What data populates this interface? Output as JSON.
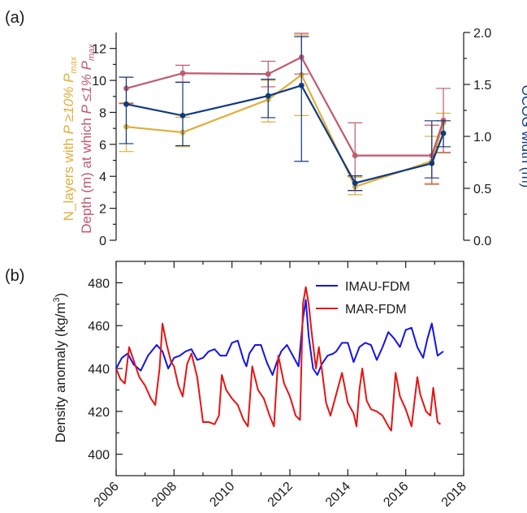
{
  "colors": {
    "gold": "#E0AE3A",
    "rose": "#BF5A6E",
    "navy": "#0F3A80",
    "blue": "#1414E6",
    "red": "#E61414"
  },
  "panel_a": {
    "label": "(a)",
    "ylabel_gold_prefix": "N_layers with ",
    "ylabel_gold_suffix": "P ≥10% P",
    "ylabel_gold_sub": "max",
    "ylabel_rose_prefix": "Depth (m) at which ",
    "ylabel_rose_suffix": "P ≤1% P",
    "ylabel_rose_sub": "max",
    "ylabel_right": "OCOG width (m)",
    "left_ticks": [
      "0",
      "2",
      "4",
      "6",
      "8",
      "10",
      "12"
    ],
    "right_ticks": [
      "0.0",
      "0.5",
      "1.0",
      "1.5",
      "2.0"
    ]
  },
  "panel_b": {
    "label": "(b)",
    "ylabel_main": "Density anomaly (kg/m",
    "ylabel_sup": "3",
    "ylabel_close": ")",
    "y_ticks": [
      "400",
      "420",
      "440",
      "460",
      "480"
    ],
    "legend": [
      "IMAU-FDM",
      "MAR-FDM"
    ]
  },
  "x_ticks": [
    "2006",
    "2008",
    "2010",
    "2012",
    "2014",
    "2016",
    "2018"
  ],
  "chart_data": [
    {
      "type": "line",
      "xlim": [
        2006,
        2018
      ],
      "ylim_left": [
        0,
        13
      ],
      "ylim_right": [
        0,
        2.0
      ],
      "series": [
        {
          "axis": "left",
          "color": "gold",
          "x": [
            2006.35,
            2008.3,
            2011.25,
            2012.4,
            2014.25,
            2016.9,
            2017.3
          ],
          "y": [
            7.1,
            6.75,
            8.8,
            10.35,
            3.35,
            4.95,
            7.35
          ],
          "err_low": [
            5.55,
            5.85,
            7.4,
            7.8,
            2.85,
            3.55,
            5.45
          ],
          "err_high": [
            8.6,
            7.7,
            10.0,
            12.85,
            3.95,
            6.5,
            7.95
          ]
        },
        {
          "axis": "left",
          "color": "rose",
          "x": [
            2006.35,
            2008.3,
            2011.25,
            2012.4,
            2014.25,
            2016.9,
            2017.3
          ],
          "y": [
            9.5,
            10.45,
            10.4,
            11.45,
            5.3,
            5.3,
            7.5
          ],
          "err_low": [
            8.55,
            9.9,
            9.6,
            10.4,
            3.1,
            3.5,
            5.5
          ],
          "err_high": [
            10.2,
            10.95,
            11.2,
            12.95,
            7.35,
            7.2,
            9.5
          ]
        },
        {
          "axis": "right",
          "color": "navy",
          "x": [
            2006.35,
            2008.3,
            2011.25,
            2012.4,
            2014.25,
            2016.9,
            2017.3
          ],
          "y": [
            1.31,
            1.2,
            1.39,
            1.49,
            0.55,
            0.74,
            1.03
          ],
          "err_low": [
            0.93,
            0.91,
            1.18,
            0.76,
            0.48,
            0.6,
            0.9
          ],
          "err_high": [
            1.57,
            1.52,
            1.55,
            1.96,
            0.62,
            1.15,
            1.15
          ]
        }
      ]
    },
    {
      "type": "line",
      "xlim": [
        2006,
        2018
      ],
      "ylim": [
        390,
        490
      ],
      "series": [
        {
          "name": "IMAU-FDM",
          "color": "blue",
          "x": [
            2006.0,
            2006.2,
            2006.4,
            2006.6,
            2006.85,
            2007.1,
            2007.4,
            2007.6,
            2007.8,
            2008.0,
            2008.2,
            2008.4,
            2008.6,
            2008.8,
            2009.0,
            2009.2,
            2009.4,
            2009.6,
            2009.8,
            2010.0,
            2010.2,
            2010.4,
            2010.5,
            2010.6,
            2010.8,
            2011.0,
            2011.2,
            2011.4,
            2011.55,
            2011.7,
            2011.9,
            2012.1,
            2012.3,
            2012.45,
            2012.55,
            2012.65,
            2012.8,
            2012.95,
            2013.1,
            2013.3,
            2013.5,
            2013.6,
            2013.8,
            2014.0,
            2014.2,
            2014.4,
            2014.6,
            2014.8,
            2015.0,
            2015.2,
            2015.4,
            2015.6,
            2015.8,
            2016.0,
            2016.2,
            2016.4,
            2016.6,
            2016.75,
            2016.9,
            2017.1,
            2017.3
          ],
          "y": [
            440,
            445,
            447,
            442,
            439,
            446,
            451,
            448,
            440,
            445,
            446,
            448,
            449,
            444,
            445,
            448,
            449,
            446,
            446,
            452,
            453,
            444,
            441,
            447,
            451,
            451,
            443,
            437,
            443,
            448,
            451,
            446,
            441,
            463,
            472,
            455,
            440,
            437,
            442,
            446,
            447,
            448,
            452,
            452,
            443,
            450,
            452,
            451,
            444,
            450,
            457,
            454,
            450,
            458,
            459,
            450,
            445,
            454,
            461,
            446,
            448
          ]
        },
        {
          "name": "MAR-FDM",
          "color": "red",
          "x": [
            2006.0,
            2006.15,
            2006.3,
            2006.45,
            2006.6,
            2006.8,
            2007.0,
            2007.2,
            2007.35,
            2007.5,
            2007.6,
            2007.75,
            2007.9,
            2008.0,
            2008.15,
            2008.3,
            2008.45,
            2008.6,
            2008.8,
            2009.0,
            2009.2,
            2009.4,
            2009.55,
            2009.65,
            2009.8,
            2010.0,
            2010.2,
            2010.4,
            2010.55,
            2010.7,
            2010.9,
            2011.1,
            2011.3,
            2011.45,
            2011.6,
            2011.8,
            2012.0,
            2012.2,
            2012.35,
            2012.45,
            2012.55,
            2012.65,
            2012.75,
            2012.9,
            2013.0,
            2013.1,
            2013.25,
            2013.4,
            2013.6,
            2013.8,
            2014.0,
            2014.2,
            2014.3,
            2014.4,
            2014.5,
            2014.65,
            2014.8,
            2015.0,
            2015.2,
            2015.4,
            2015.5,
            2015.65,
            2015.8,
            2016.0,
            2016.2,
            2016.4,
            2016.5,
            2016.7,
            2016.85,
            2016.95,
            2017.1,
            2017.2
          ],
          "y": [
            440,
            435,
            433,
            450,
            444,
            436,
            432,
            426,
            423,
            440,
            461,
            451,
            443,
            441,
            432,
            427,
            442,
            447,
            436,
            415,
            415,
            414,
            418,
            437,
            430,
            426,
            423,
            416,
            413,
            441,
            430,
            426,
            418,
            413,
            446,
            433,
            427,
            418,
            416,
            470,
            478,
            470,
            457,
            440,
            450,
            440,
            424,
            418,
            428,
            438,
            424,
            419,
            413,
            430,
            440,
            425,
            421,
            420,
            418,
            413,
            411,
            438,
            427,
            421,
            413,
            436,
            428,
            420,
            418,
            431,
            415,
            414
          ]
        }
      ]
    }
  ]
}
